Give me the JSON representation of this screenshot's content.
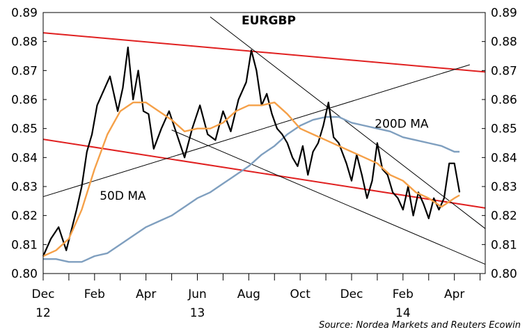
{
  "chart_data": {
    "type": "line",
    "title": "EURGBP",
    "source": "Source: Nordea Markets and Reuters Ecowin",
    "ylim": [
      0.8,
      0.89
    ],
    "y_ticks": [
      "0.80",
      "0.81",
      "0.82",
      "0.83",
      "0.84",
      "0.85",
      "0.86",
      "0.87",
      "0.88",
      "0.89"
    ],
    "x_ticks": [
      {
        "month": "Dec",
        "year": "12",
        "x": 0
      },
      {
        "month": "Feb",
        "year": "",
        "x": 2
      },
      {
        "month": "Apr",
        "year": "",
        "x": 4
      },
      {
        "month": "Jun",
        "year": "13",
        "x": 6
      },
      {
        "month": "Aug",
        "year": "",
        "x": 8
      },
      {
        "month": "Oct",
        "year": "",
        "x": 10
      },
      {
        "month": "Dec",
        "year": "",
        "x": 12
      },
      {
        "month": "Feb",
        "year": "14",
        "x": 14
      },
      {
        "month": "Apr",
        "year": "",
        "x": 16
      }
    ],
    "xlim": [
      0,
      17.2
    ],
    "annotations": [
      {
        "text": "50D MA",
        "x": 2.2,
        "y": 0.8255
      },
      {
        "text": "200D MA",
        "x": 12.9,
        "y": 0.8503
      }
    ],
    "series": [
      {
        "name": "EURGBP",
        "color": "#000000",
        "x": [
          0,
          0.3,
          0.6,
          0.9,
          1.1,
          1.3,
          1.5,
          1.7,
          1.9,
          2.1,
          2.4,
          2.6,
          2.9,
          3.1,
          3.3,
          3.5,
          3.7,
          3.9,
          4.1,
          4.3,
          4.6,
          4.9,
          5.2,
          5.5,
          5.8,
          6.1,
          6.4,
          6.7,
          7.0,
          7.3,
          7.6,
          7.9,
          8.1,
          8.3,
          8.5,
          8.7,
          8.9,
          9.1,
          9.3,
          9.5,
          9.7,
          9.9,
          10.1,
          10.3,
          10.5,
          10.7,
          10.9,
          11.1,
          11.3,
          11.5,
          11.8,
          12.0,
          12.2,
          12.4,
          12.6,
          12.8,
          13.0,
          13.2,
          13.4,
          13.6,
          13.8,
          14.0,
          14.2,
          14.4,
          14.6,
          14.8,
          15.0,
          15.2,
          15.4,
          15.6,
          15.8,
          16.0,
          16.2
        ],
        "y": [
          0.806,
          0.812,
          0.816,
          0.808,
          0.815,
          0.822,
          0.83,
          0.842,
          0.848,
          0.858,
          0.864,
          0.868,
          0.856,
          0.864,
          0.878,
          0.86,
          0.87,
          0.856,
          0.855,
          0.843,
          0.85,
          0.856,
          0.848,
          0.84,
          0.85,
          0.858,
          0.848,
          0.846,
          0.856,
          0.849,
          0.86,
          0.866,
          0.877,
          0.87,
          0.858,
          0.862,
          0.855,
          0.85,
          0.848,
          0.845,
          0.84,
          0.837,
          0.844,
          0.834,
          0.842,
          0.845,
          0.851,
          0.859,
          0.847,
          0.845,
          0.838,
          0.832,
          0.841,
          0.834,
          0.826,
          0.832,
          0.845,
          0.836,
          0.834,
          0.828,
          0.826,
          0.822,
          0.83,
          0.82,
          0.828,
          0.824,
          0.819,
          0.826,
          0.822,
          0.826,
          0.838,
          0.838,
          0.828
        ]
      },
      {
        "name": "50D MA",
        "color": "#f5a048",
        "x": [
          0,
          0.5,
          1,
          1.5,
          2,
          2.5,
          3,
          3.5,
          4,
          4.5,
          5,
          5.5,
          6,
          6.5,
          7,
          7.5,
          8,
          8.5,
          9,
          9.5,
          10,
          10.5,
          11,
          11.5,
          12,
          12.5,
          13,
          13.5,
          14,
          14.5,
          15,
          15.5,
          16,
          16.2
        ],
        "y": [
          0.806,
          0.808,
          0.812,
          0.822,
          0.836,
          0.848,
          0.856,
          0.859,
          0.859,
          0.856,
          0.853,
          0.849,
          0.85,
          0.85,
          0.852,
          0.856,
          0.858,
          0.858,
          0.859,
          0.855,
          0.85,
          0.848,
          0.846,
          0.844,
          0.842,
          0.84,
          0.838,
          0.834,
          0.832,
          0.828,
          0.826,
          0.823,
          0.826,
          0.827
        ]
      },
      {
        "name": "200D MA",
        "color": "#7f9fbf",
        "x": [
          0,
          0.5,
          1,
          1.5,
          2,
          2.5,
          3,
          3.5,
          4,
          4.5,
          5,
          5.5,
          6,
          6.5,
          7,
          7.5,
          8,
          8.5,
          9,
          9.5,
          10,
          10.5,
          11,
          11.5,
          12,
          12.5,
          13,
          13.5,
          14,
          14.5,
          15,
          15.5,
          16,
          16.2
        ],
        "y": [
          0.805,
          0.805,
          0.804,
          0.804,
          0.806,
          0.807,
          0.81,
          0.813,
          0.816,
          0.818,
          0.82,
          0.823,
          0.826,
          0.828,
          0.831,
          0.834,
          0.837,
          0.841,
          0.844,
          0.848,
          0.851,
          0.853,
          0.854,
          0.854,
          0.852,
          0.851,
          0.85,
          0.849,
          0.847,
          0.846,
          0.845,
          0.844,
          0.842,
          0.842
        ]
      }
    ],
    "trendlines": [
      {
        "color": "#e02020",
        "width": 2,
        "x": [
          0,
          17.2
        ],
        "y": [
          0.883,
          0.8695
        ]
      },
      {
        "color": "#e02020",
        "width": 2,
        "x": [
          0,
          17.2
        ],
        "y": [
          0.8463,
          0.8226
        ]
      },
      {
        "color": "#000000",
        "width": 1,
        "x": [
          0,
          16.6
        ],
        "y": [
          0.8265,
          0.872
        ]
      },
      {
        "color": "#000000",
        "width": 1,
        "x": [
          6.5,
          17.2
        ],
        "y": [
          0.8885,
          0.8155
        ]
      },
      {
        "color": "#000000",
        "width": 1,
        "x": [
          5,
          17.2
        ],
        "y": [
          0.8495,
          0.8032
        ]
      }
    ]
  }
}
